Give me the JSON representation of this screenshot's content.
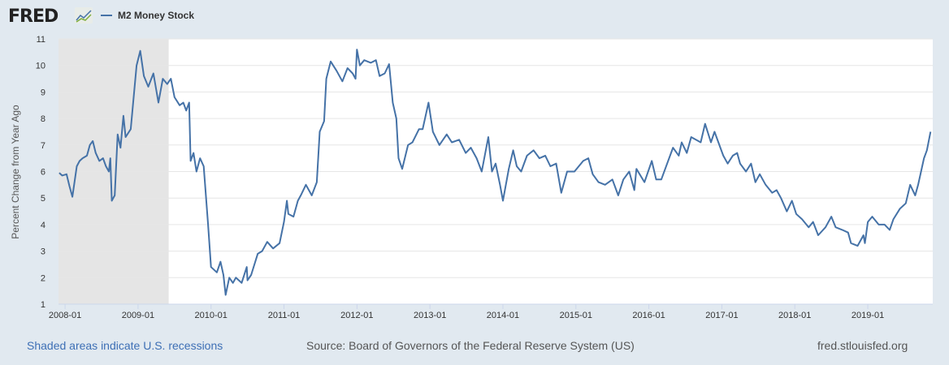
{
  "header": {
    "logo": "FRED",
    "legend_label": "M2 Money Stock"
  },
  "footer": {
    "recession_note": "Shaded areas indicate U.S. recessions",
    "source": "Source: Board of Governors of the Federal Reserve System (US)",
    "site": "fred.stlouisfed.org"
  },
  "colors": {
    "line": "#4572a7",
    "recession": "#e5e5e5",
    "background": "#e1e9f0",
    "grid": "#e6e6e6"
  },
  "chart_data": {
    "type": "line",
    "title": "M2 Money Stock",
    "ylabel": "Percent Change from Year Ago",
    "xlabel": "",
    "ylim": [
      1,
      11
    ],
    "xlim": [
      2007.91,
      2019.89
    ],
    "yticks": [
      "1",
      "2",
      "3",
      "4",
      "5",
      "6",
      "7",
      "8",
      "9",
      "10",
      "11"
    ],
    "xticks": [
      {
        "label": "2008-01",
        "x": 2008
      },
      {
        "label": "2009-01",
        "x": 2009
      },
      {
        "label": "2010-01",
        "x": 2010
      },
      {
        "label": "2011-01",
        "x": 2011
      },
      {
        "label": "2012-01",
        "x": 2012
      },
      {
        "label": "2013-01",
        "x": 2013
      },
      {
        "label": "2014-01",
        "x": 2014
      },
      {
        "label": "2015-01",
        "x": 2015
      },
      {
        "label": "2016-01",
        "x": 2016
      },
      {
        "label": "2017-01",
        "x": 2017
      },
      {
        "label": "2018-01",
        "x": 2018
      },
      {
        "label": "2019-01",
        "x": 2019
      }
    ],
    "recessions": [
      [
        2007.91,
        2009.42
      ]
    ],
    "grid": true,
    "series": [
      {
        "name": "M2 Money Stock",
        "points": [
          [
            2007.92,
            5.95
          ],
          [
            2007.96,
            5.85
          ],
          [
            2008.02,
            5.9
          ],
          [
            2008.06,
            5.45
          ],
          [
            2008.1,
            5.05
          ],
          [
            2008.16,
            6.2
          ],
          [
            2008.2,
            6.4
          ],
          [
            2008.24,
            6.5
          ],
          [
            2008.3,
            6.6
          ],
          [
            2008.34,
            7.0
          ],
          [
            2008.38,
            7.15
          ],
          [
            2008.42,
            6.7
          ],
          [
            2008.47,
            6.4
          ],
          [
            2008.52,
            6.5
          ],
          [
            2008.56,
            6.2
          ],
          [
            2008.6,
            6.0
          ],
          [
            2008.62,
            6.5
          ],
          [
            2008.64,
            4.9
          ],
          [
            2008.68,
            5.1
          ],
          [
            2008.72,
            7.4
          ],
          [
            2008.76,
            6.9
          ],
          [
            2008.8,
            8.1
          ],
          [
            2008.83,
            7.3
          ],
          [
            2008.9,
            7.6
          ],
          [
            2008.98,
            10.0
          ],
          [
            2009.03,
            10.55
          ],
          [
            2009.08,
            9.6
          ],
          [
            2009.14,
            9.2
          ],
          [
            2009.21,
            9.7
          ],
          [
            2009.28,
            8.6
          ],
          [
            2009.34,
            9.5
          ],
          [
            2009.4,
            9.3
          ],
          [
            2009.45,
            9.5
          ],
          [
            2009.5,
            8.8
          ],
          [
            2009.57,
            8.5
          ],
          [
            2009.62,
            8.6
          ],
          [
            2009.66,
            8.3
          ],
          [
            2009.7,
            8.6
          ],
          [
            2009.72,
            6.4
          ],
          [
            2009.76,
            6.7
          ],
          [
            2009.8,
            6.0
          ],
          [
            2009.85,
            6.5
          ],
          [
            2009.9,
            6.2
          ],
          [
            2009.96,
            4.0
          ],
          [
            2010.0,
            2.4
          ],
          [
            2010.08,
            2.2
          ],
          [
            2010.13,
            2.6
          ],
          [
            2010.17,
            2.1
          ],
          [
            2010.2,
            1.35
          ],
          [
            2010.25,
            2.0
          ],
          [
            2010.3,
            1.8
          ],
          [
            2010.34,
            2.0
          ],
          [
            2010.42,
            1.8
          ],
          [
            2010.49,
            2.4
          ],
          [
            2010.5,
            1.9
          ],
          [
            2010.55,
            2.1
          ],
          [
            2010.64,
            2.9
          ],
          [
            2010.7,
            3.0
          ],
          [
            2010.77,
            3.35
          ],
          [
            2010.85,
            3.1
          ],
          [
            2010.94,
            3.3
          ],
          [
            2011.0,
            4.1
          ],
          [
            2011.04,
            4.9
          ],
          [
            2011.06,
            4.4
          ],
          [
            2011.13,
            4.3
          ],
          [
            2011.19,
            4.9
          ],
          [
            2011.23,
            5.1
          ],
          [
            2011.3,
            5.5
          ],
          [
            2011.38,
            5.1
          ],
          [
            2011.45,
            5.6
          ],
          [
            2011.49,
            7.5
          ],
          [
            2011.55,
            7.9
          ],
          [
            2011.58,
            9.5
          ],
          [
            2011.64,
            10.15
          ],
          [
            2011.72,
            9.8
          ],
          [
            2011.8,
            9.4
          ],
          [
            2011.87,
            9.9
          ],
          [
            2011.94,
            9.7
          ],
          [
            2011.98,
            9.5
          ],
          [
            2012.0,
            10.6
          ],
          [
            2012.04,
            10.0
          ],
          [
            2012.1,
            10.2
          ],
          [
            2012.19,
            10.1
          ],
          [
            2012.26,
            10.2
          ],
          [
            2012.31,
            9.6
          ],
          [
            2012.38,
            9.7
          ],
          [
            2012.44,
            10.05
          ],
          [
            2012.49,
            8.6
          ],
          [
            2012.54,
            8.0
          ],
          [
            2012.57,
            6.5
          ],
          [
            2012.62,
            6.1
          ],
          [
            2012.7,
            7.0
          ],
          [
            2012.76,
            7.1
          ],
          [
            2012.85,
            7.6
          ],
          [
            2012.9,
            7.6
          ],
          [
            2012.98,
            8.6
          ],
          [
            2013.04,
            7.5
          ],
          [
            2013.13,
            7.0
          ],
          [
            2013.23,
            7.4
          ],
          [
            2013.3,
            7.1
          ],
          [
            2013.4,
            7.2
          ],
          [
            2013.49,
            6.7
          ],
          [
            2013.56,
            6.9
          ],
          [
            2013.64,
            6.5
          ],
          [
            2013.71,
            6.0
          ],
          [
            2013.8,
            7.3
          ],
          [
            2013.85,
            6.0
          ],
          [
            2013.9,
            6.3
          ],
          [
            2013.96,
            5.5
          ],
          [
            2014.0,
            4.9
          ],
          [
            2014.08,
            6.1
          ],
          [
            2014.14,
            6.8
          ],
          [
            2014.19,
            6.2
          ],
          [
            2014.25,
            6.0
          ],
          [
            2014.33,
            6.6
          ],
          [
            2014.42,
            6.8
          ],
          [
            2014.5,
            6.5
          ],
          [
            2014.58,
            6.6
          ],
          [
            2014.65,
            6.2
          ],
          [
            2014.73,
            6.3
          ],
          [
            2014.8,
            5.2
          ],
          [
            2014.88,
            6.0
          ],
          [
            2014.98,
            6.0
          ],
          [
            2015.1,
            6.4
          ],
          [
            2015.17,
            6.5
          ],
          [
            2015.23,
            5.9
          ],
          [
            2015.31,
            5.6
          ],
          [
            2015.4,
            5.5
          ],
          [
            2015.5,
            5.7
          ],
          [
            2015.58,
            5.1
          ],
          [
            2015.65,
            5.7
          ],
          [
            2015.73,
            6.0
          ],
          [
            2015.8,
            5.3
          ],
          [
            2015.83,
            6.1
          ],
          [
            2015.94,
            5.6
          ],
          [
            2016.04,
            6.4
          ],
          [
            2016.1,
            5.7
          ],
          [
            2016.17,
            5.7
          ],
          [
            2016.25,
            6.3
          ],
          [
            2016.33,
            6.9
          ],
          [
            2016.41,
            6.6
          ],
          [
            2016.45,
            7.1
          ],
          [
            2016.52,
            6.7
          ],
          [
            2016.58,
            7.3
          ],
          [
            2016.71,
            7.1
          ],
          [
            2016.77,
            7.8
          ],
          [
            2016.85,
            7.1
          ],
          [
            2016.9,
            7.5
          ],
          [
            2016.98,
            6.9
          ],
          [
            2017.02,
            6.6
          ],
          [
            2017.08,
            6.3
          ],
          [
            2017.15,
            6.6
          ],
          [
            2017.21,
            6.7
          ],
          [
            2017.25,
            6.3
          ],
          [
            2017.33,
            6.0
          ],
          [
            2017.4,
            6.3
          ],
          [
            2017.46,
            5.6
          ],
          [
            2017.52,
            5.9
          ],
          [
            2017.6,
            5.5
          ],
          [
            2017.69,
            5.2
          ],
          [
            2017.75,
            5.3
          ],
          [
            2017.81,
            5.0
          ],
          [
            2017.89,
            4.5
          ],
          [
            2017.96,
            4.9
          ],
          [
            2018.02,
            4.4
          ],
          [
            2018.1,
            4.2
          ],
          [
            2018.19,
            3.9
          ],
          [
            2018.25,
            4.1
          ],
          [
            2018.32,
            3.6
          ],
          [
            2018.42,
            3.9
          ],
          [
            2018.5,
            4.3
          ],
          [
            2018.56,
            3.9
          ],
          [
            2018.65,
            3.8
          ],
          [
            2018.73,
            3.7
          ],
          [
            2018.77,
            3.3
          ],
          [
            2018.86,
            3.2
          ],
          [
            2018.94,
            3.6
          ],
          [
            2018.96,
            3.3
          ],
          [
            2019.0,
            4.1
          ],
          [
            2019.06,
            4.3
          ],
          [
            2019.15,
            4.0
          ],
          [
            2019.23,
            4.0
          ],
          [
            2019.3,
            3.8
          ],
          [
            2019.35,
            4.2
          ],
          [
            2019.44,
            4.6
          ],
          [
            2019.52,
            4.8
          ],
          [
            2019.58,
            5.5
          ],
          [
            2019.65,
            5.1
          ],
          [
            2019.69,
            5.5
          ],
          [
            2019.73,
            6.0
          ],
          [
            2019.77,
            6.5
          ],
          [
            2019.81,
            6.8
          ],
          [
            2019.86,
            7.5
          ]
        ]
      }
    ]
  }
}
